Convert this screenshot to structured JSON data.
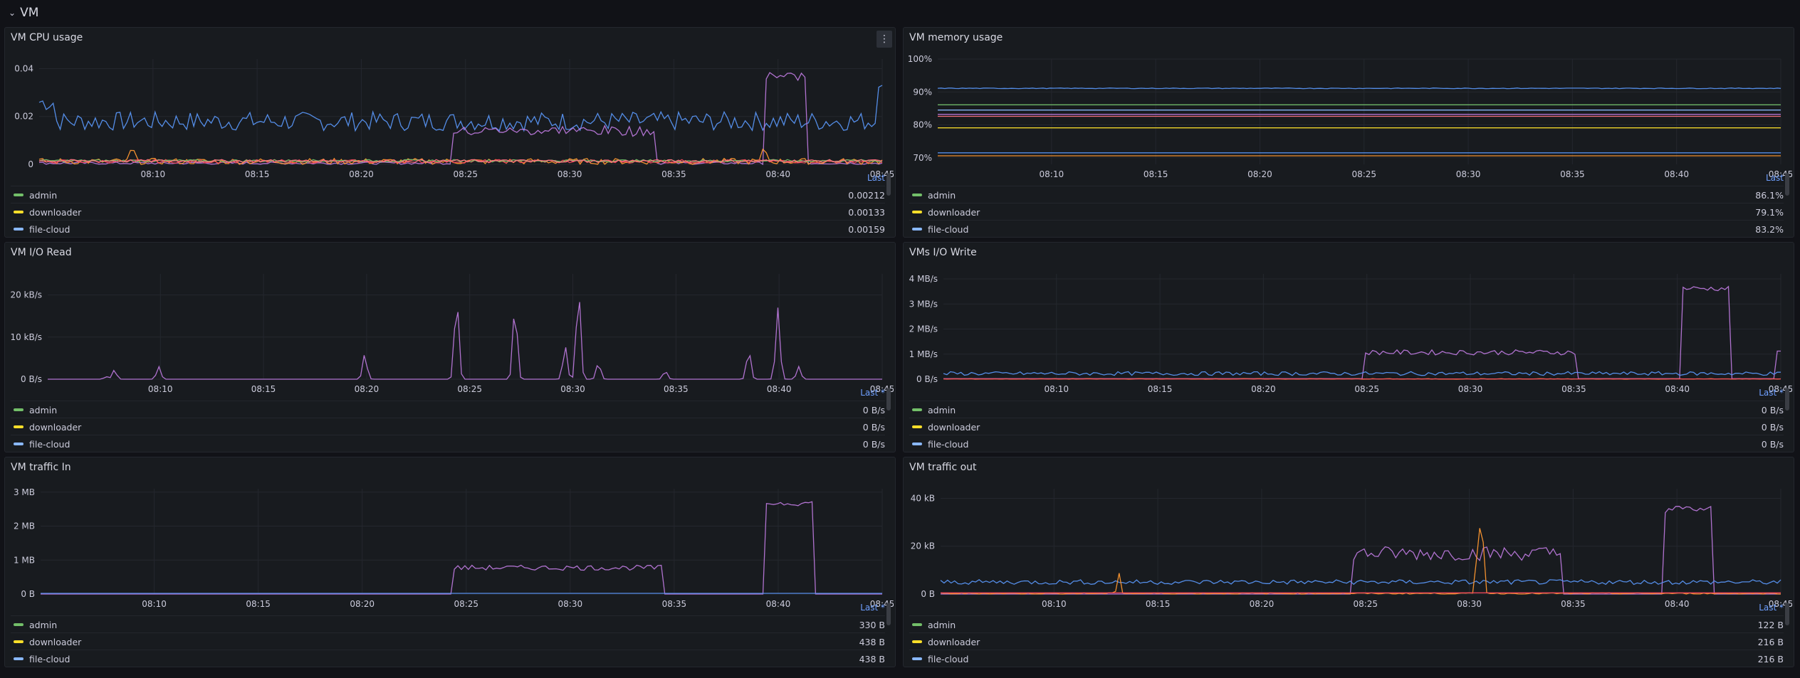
{
  "row": {
    "title": "VM",
    "chevron": "⌄"
  },
  "colors": {
    "admin": "#73bf69",
    "downloader": "#fade2a",
    "file-cloud": "#8ab8ff",
    "blue": "#5794f2",
    "orange": "#ff9830",
    "purple": "#b877d9",
    "red": "#f2495c",
    "pink": "#ff7383"
  },
  "x_ticks": [
    "08:10",
    "08:15",
    "08:20",
    "08:25",
    "08:30",
    "08:35",
    "08:40",
    "08:45"
  ],
  "panels": [
    {
      "id": "cpu",
      "title": "VM CPU usage",
      "legend_header": "Last",
      "y_ticks": [
        {
          "v": 0,
          "l": "0"
        },
        {
          "v": 0.02,
          "l": "0.02"
        },
        {
          "v": 0.04,
          "l": "0.04"
        }
      ],
      "ymax": 0.044,
      "series": [
        {
          "name": "admin",
          "value": "0.00212",
          "color": "#73bf69"
        },
        {
          "name": "downloader",
          "value": "0.00133",
          "color": "#fade2a"
        },
        {
          "name": "file-cloud",
          "value": "0.00159",
          "color": "#8ab8ff"
        }
      ]
    },
    {
      "id": "mem",
      "title": "VM memory usage",
      "legend_header": "Last",
      "y_ticks": [
        {
          "v": 70,
          "l": "70%"
        },
        {
          "v": 80,
          "l": "80%"
        },
        {
          "v": 90,
          "l": "90%"
        },
        {
          "v": 100,
          "l": "100%"
        }
      ],
      "ymin": 68,
      "ymax": 100,
      "series": [
        {
          "name": "admin",
          "value": "86.1%",
          "color": "#73bf69"
        },
        {
          "name": "downloader",
          "value": "79.1%",
          "color": "#fade2a"
        },
        {
          "name": "file-cloud",
          "value": "83.2%",
          "color": "#8ab8ff"
        }
      ]
    },
    {
      "id": "ioread",
      "title": "VM I/O Read",
      "legend_header": "Last *",
      "y_ticks": [
        {
          "v": 0,
          "l": "0 B/s"
        },
        {
          "v": 10,
          "l": "10 kB/s"
        },
        {
          "v": 20,
          "l": "20 kB/s"
        }
      ],
      "ymax": 25,
      "series": [
        {
          "name": "admin",
          "value": "0 B/s",
          "color": "#73bf69"
        },
        {
          "name": "downloader",
          "value": "0 B/s",
          "color": "#fade2a"
        },
        {
          "name": "file-cloud",
          "value": "0 B/s",
          "color": "#8ab8ff"
        }
      ]
    },
    {
      "id": "iowrite",
      "title": "VMs I/O Write",
      "legend_header": "Last *",
      "y_ticks": [
        {
          "v": 0,
          "l": "0 B/s"
        },
        {
          "v": 1,
          "l": "1 MB/s"
        },
        {
          "v": 2,
          "l": "2 MB/s"
        },
        {
          "v": 3,
          "l": "3 MB/s"
        },
        {
          "v": 4,
          "l": "4 MB/s"
        }
      ],
      "ymax": 4.2,
      "series": [
        {
          "name": "admin",
          "value": "0 B/s",
          "color": "#73bf69"
        },
        {
          "name": "downloader",
          "value": "0 B/s",
          "color": "#fade2a"
        },
        {
          "name": "file-cloud",
          "value": "0 B/s",
          "color": "#8ab8ff"
        }
      ]
    },
    {
      "id": "trafin",
      "title": "VM traffic In",
      "legend_header": "Last *",
      "y_ticks": [
        {
          "v": 0,
          "l": "0 B"
        },
        {
          "v": 1,
          "l": "1 MB"
        },
        {
          "v": 2,
          "l": "2 MB"
        },
        {
          "v": 3,
          "l": "3 MB"
        }
      ],
      "ymax": 3.1,
      "series": [
        {
          "name": "admin",
          "value": "330 B",
          "color": "#73bf69"
        },
        {
          "name": "downloader",
          "value": "438 B",
          "color": "#fade2a"
        },
        {
          "name": "file-cloud",
          "value": "438 B",
          "color": "#8ab8ff"
        }
      ]
    },
    {
      "id": "trafout",
      "title": "VM traffic out",
      "legend_header": "Last *",
      "y_ticks": [
        {
          "v": 0,
          "l": "0 B"
        },
        {
          "v": 20,
          "l": "20 kB"
        },
        {
          "v": 40,
          "l": "40 kB"
        }
      ],
      "ymax": 44,
      "series": [
        {
          "name": "admin",
          "value": "122 B",
          "color": "#73bf69"
        },
        {
          "name": "downloader",
          "value": "216 B",
          "color": "#fade2a"
        },
        {
          "name": "file-cloud",
          "value": "216 B",
          "color": "#8ab8ff"
        }
      ]
    }
  ]
}
